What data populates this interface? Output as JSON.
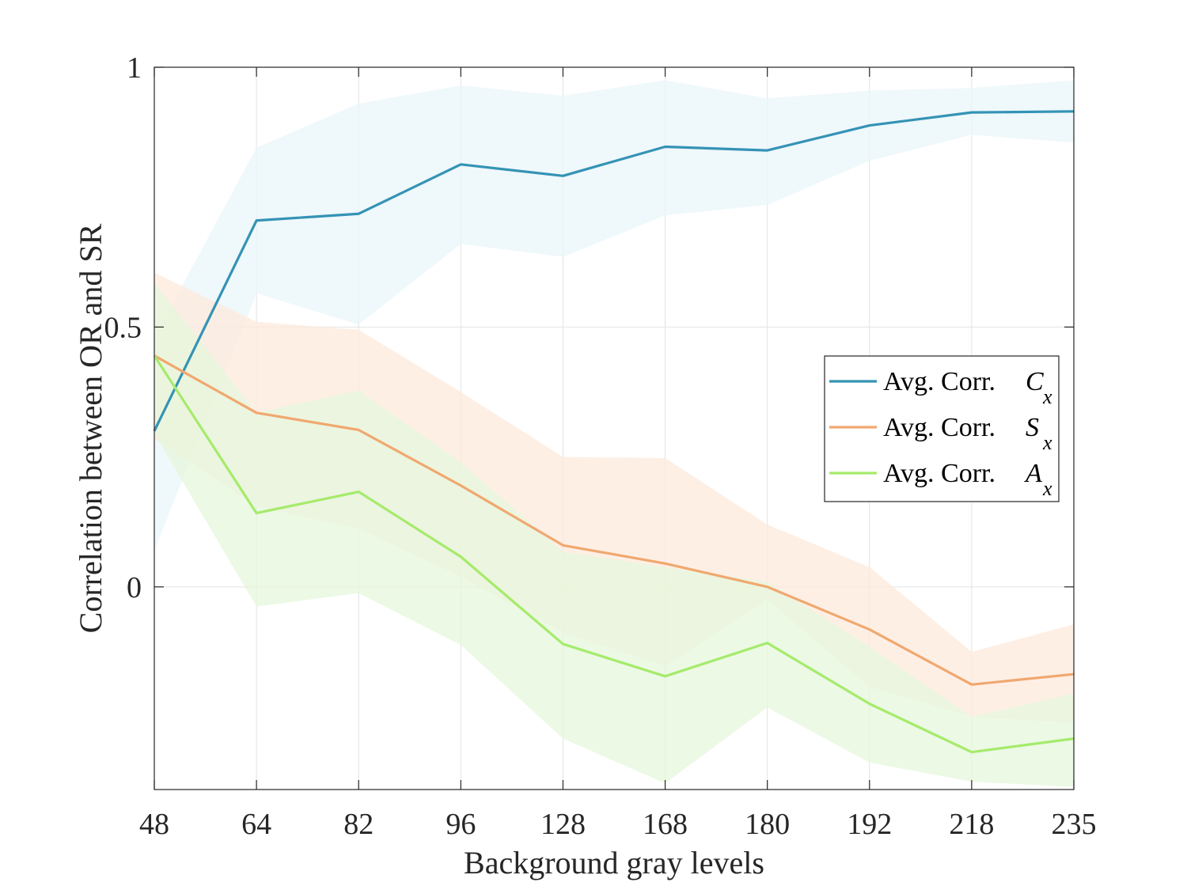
{
  "chart_data": {
    "type": "line",
    "xlabel": "Background gray levels",
    "ylabel": "Correlation between OR and SR",
    "categories": [
      "48",
      "64",
      "82",
      "96",
      "128",
      "168",
      "180",
      "192",
      "218",
      "235"
    ],
    "ylim": [
      -0.39,
      1
    ],
    "yticks": [
      "0",
      "0.5",
      "1"
    ],
    "grid": true,
    "legend_position": "right",
    "series": [
      {
        "name": "Avg. Corr.",
        "symbol": "C",
        "subscript": "x",
        "color": "#3493b5",
        "band_color": "#eaf6f9",
        "values": [
          0.3,
          0.705,
          0.718,
          0.813,
          0.791,
          0.847,
          0.84,
          0.888,
          0.913,
          0.915
        ],
        "upper": [
          0.48,
          0.845,
          0.93,
          0.965,
          0.945,
          0.975,
          0.94,
          0.955,
          0.96,
          0.975
        ],
        "lower": [
          0.07,
          0.565,
          0.505,
          0.66,
          0.635,
          0.715,
          0.735,
          0.82,
          0.87,
          0.855
        ]
      },
      {
        "name": "Avg. Corr.",
        "symbol": "S",
        "subscript": "x",
        "color": "#f0a86f",
        "band_color": "#fde9dc",
        "values": [
          0.445,
          0.335,
          0.302,
          0.195,
          0.08,
          0.045,
          0.0,
          -0.082,
          -0.188,
          -0.168
        ],
        "upper": [
          0.605,
          0.51,
          0.495,
          0.375,
          0.25,
          0.248,
          0.12,
          0.038,
          -0.125,
          -0.072
        ],
        "lower": [
          0.285,
          0.155,
          0.112,
          0.02,
          -0.088,
          -0.152,
          -0.025,
          -0.192,
          -0.25,
          -0.262
        ]
      },
      {
        "name": "Avg. Corr.",
        "symbol": "A",
        "subscript": "x",
        "color": "#a5eb6b",
        "band_color": "#e6f7dc",
        "values": [
          0.445,
          0.142,
          0.183,
          0.058,
          -0.11,
          -0.172,
          -0.108,
          -0.225,
          -0.318,
          -0.292
        ],
        "upper": [
          0.585,
          0.335,
          0.378,
          0.24,
          0.068,
          0.038,
          0.01,
          -0.115,
          -0.25,
          -0.205
        ],
        "lower": [
          0.295,
          -0.038,
          -0.012,
          -0.112,
          -0.292,
          -0.378,
          -0.232,
          -0.338,
          -0.375,
          -0.385
        ]
      }
    ]
  }
}
